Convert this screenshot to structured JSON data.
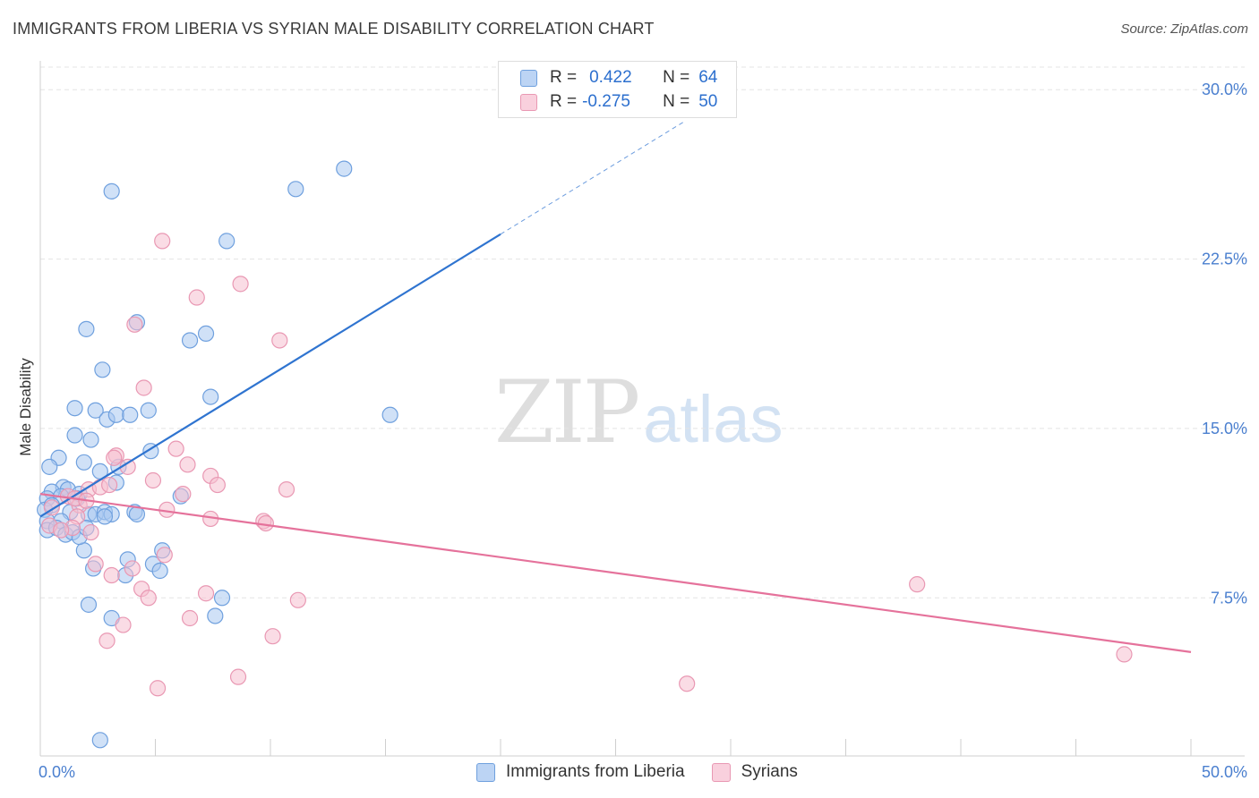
{
  "header": {
    "title": "IMMIGRANTS FROM LIBERIA VS SYRIAN MALE DISABILITY CORRELATION CHART",
    "source": "Source: ZipAtlas.com"
  },
  "watermark": {
    "zip": "ZIP",
    "atlas": "atlas"
  },
  "legend_top": {
    "rows": [
      {
        "r_label": "R =",
        "r_value": "0.422",
        "n_label": "N =",
        "n_value": "64"
      },
      {
        "r_label": "R =",
        "r_value": "-0.275",
        "n_label": "N =",
        "n_value": "50"
      }
    ]
  },
  "legend_bottom": {
    "items": [
      {
        "label": "Immigrants from Liberia"
      },
      {
        "label": "Syrians"
      }
    ]
  },
  "colors": {
    "blue_fill": "#a9c8f0",
    "blue_stroke": "#6fa0de",
    "blue_line": "#2f74d0",
    "pink_fill": "#f6bfd0",
    "pink_stroke": "#e998b3",
    "pink_line": "#e5729b",
    "tick_label": "#4a7fcf",
    "grid": "#e4e4e4",
    "axis": "#cfcfcf"
  },
  "chart_data": {
    "type": "scatter",
    "title": "IMMIGRANTS FROM LIBERIA VS SYRIAN MALE DISABILITY CORRELATION CHART",
    "xlabel": "",
    "ylabel": "Male Disability",
    "xlim": [
      0,
      50
    ],
    "ylim": [
      0.5,
      31.0
    ],
    "x_tick_labels": [
      "0.0%",
      "50.0%"
    ],
    "y_ticks": [
      7.5,
      15.0,
      22.5,
      30.0
    ],
    "y_tick_labels": [
      "7.5%",
      "15.0%",
      "22.5%",
      "30.0%"
    ],
    "grid": true,
    "series": [
      {
        "name": "Immigrants from Liberia",
        "color": "#6fa0de",
        "r": 0.422,
        "n": 64,
        "trend": {
          "x0": 0,
          "y0": 11.1,
          "x1": 20,
          "y1": 23.6,
          "dash_to_x": 28,
          "dash_to_y": 28.6
        },
        "points": [
          [
            3.1,
            25.5
          ],
          [
            11.1,
            25.6
          ],
          [
            13.2,
            26.5
          ],
          [
            8.1,
            23.3
          ],
          [
            2.0,
            19.4
          ],
          [
            4.2,
            19.7
          ],
          [
            6.5,
            18.9
          ],
          [
            7.2,
            19.2
          ],
          [
            2.7,
            17.6
          ],
          [
            7.4,
            16.4
          ],
          [
            1.5,
            15.9
          ],
          [
            2.4,
            15.8
          ],
          [
            2.9,
            15.4
          ],
          [
            3.3,
            15.6
          ],
          [
            3.9,
            15.6
          ],
          [
            4.7,
            15.8
          ],
          [
            15.2,
            15.6
          ],
          [
            1.5,
            14.7
          ],
          [
            2.2,
            14.5
          ],
          [
            0.8,
            13.7
          ],
          [
            1.9,
            13.5
          ],
          [
            0.4,
            13.3
          ],
          [
            2.6,
            13.1
          ],
          [
            3.4,
            13.3
          ],
          [
            4.8,
            14.0
          ],
          [
            3.3,
            12.6
          ],
          [
            1.0,
            12.4
          ],
          [
            0.5,
            12.2
          ],
          [
            1.2,
            12.3
          ],
          [
            1.7,
            12.1
          ],
          [
            0.3,
            11.9
          ],
          [
            0.9,
            12.0
          ],
          [
            1.6,
            11.9
          ],
          [
            0.2,
            11.4
          ],
          [
            0.5,
            11.6
          ],
          [
            1.3,
            11.3
          ],
          [
            2.1,
            11.2
          ],
          [
            2.4,
            11.2
          ],
          [
            2.8,
            11.3
          ],
          [
            3.1,
            11.2
          ],
          [
            2.8,
            11.1
          ],
          [
            4.1,
            11.3
          ],
          [
            6.1,
            12.0
          ],
          [
            0.3,
            10.9
          ],
          [
            0.9,
            10.9
          ],
          [
            0.3,
            10.5
          ],
          [
            0.7,
            10.6
          ],
          [
            1.1,
            10.3
          ],
          [
            1.4,
            10.4
          ],
          [
            1.9,
            9.6
          ],
          [
            5.3,
            9.6
          ],
          [
            3.8,
            9.2
          ],
          [
            2.3,
            8.8
          ],
          [
            3.7,
            8.5
          ],
          [
            4.9,
            9.0
          ],
          [
            5.2,
            8.7
          ],
          [
            2.1,
            7.2
          ],
          [
            7.9,
            7.5
          ],
          [
            3.1,
            6.6
          ],
          [
            7.6,
            6.7
          ],
          [
            2.6,
            1.2
          ],
          [
            1.7,
            10.2
          ],
          [
            4.2,
            11.2
          ],
          [
            2.0,
            10.6
          ]
        ]
      },
      {
        "name": "Syrians",
        "color": "#e998b3",
        "r": -0.275,
        "n": 50,
        "trend": {
          "x0": 0,
          "y0": 12.1,
          "x1": 50,
          "y1": 5.1
        },
        "points": [
          [
            5.3,
            23.3
          ],
          [
            8.7,
            21.4
          ],
          [
            6.8,
            20.8
          ],
          [
            4.1,
            19.6
          ],
          [
            10.4,
            18.9
          ],
          [
            4.5,
            16.8
          ],
          [
            3.3,
            13.8
          ],
          [
            3.2,
            13.7
          ],
          [
            5.9,
            14.1
          ],
          [
            6.4,
            13.4
          ],
          [
            3.8,
            13.3
          ],
          [
            7.4,
            12.9
          ],
          [
            4.9,
            12.7
          ],
          [
            7.7,
            12.5
          ],
          [
            2.1,
            12.3
          ],
          [
            2.6,
            12.4
          ],
          [
            10.7,
            12.3
          ],
          [
            1.2,
            12.0
          ],
          [
            1.7,
            11.6
          ],
          [
            6.2,
            12.1
          ],
          [
            5.5,
            11.4
          ],
          [
            1.6,
            11.1
          ],
          [
            7.4,
            11.0
          ],
          [
            9.7,
            10.9
          ],
          [
            9.8,
            10.8
          ],
          [
            0.4,
            10.7
          ],
          [
            1.4,
            10.6
          ],
          [
            2.2,
            10.4
          ],
          [
            0.5,
            11.5
          ],
          [
            5.4,
            9.4
          ],
          [
            2.4,
            9.0
          ],
          [
            3.1,
            8.5
          ],
          [
            4.0,
            8.8
          ],
          [
            4.4,
            7.9
          ],
          [
            4.7,
            7.5
          ],
          [
            7.2,
            7.7
          ],
          [
            11.2,
            7.4
          ],
          [
            6.5,
            6.6
          ],
          [
            3.6,
            6.3
          ],
          [
            2.9,
            5.6
          ],
          [
            10.1,
            5.8
          ],
          [
            8.6,
            4.0
          ],
          [
            5.1,
            3.5
          ],
          [
            28.1,
            3.7
          ],
          [
            38.1,
            8.1
          ],
          [
            47.1,
            5.0
          ],
          [
            0.9,
            10.5
          ],
          [
            1.5,
            11.9
          ],
          [
            3.0,
            12.5
          ],
          [
            2.0,
            11.8
          ]
        ]
      }
    ]
  }
}
